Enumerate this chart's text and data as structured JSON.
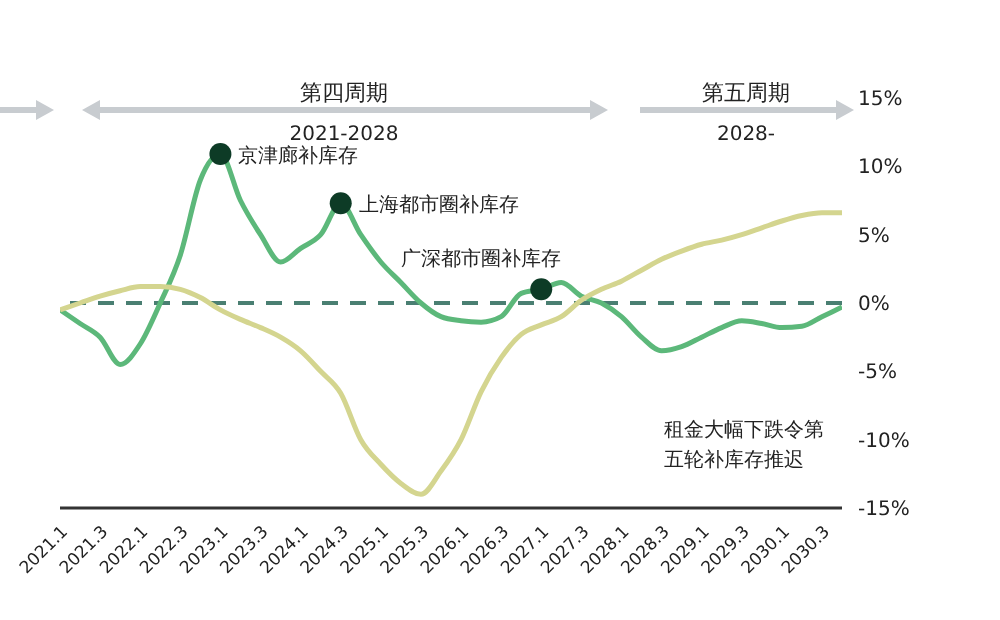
{
  "chart_data": {
    "type": "line",
    "categories": [
      "2021.1",
      null,
      "2021.3",
      null,
      "2022.1",
      null,
      "2022.3",
      null,
      "2023.1",
      null,
      "2023.3",
      null,
      "2024.1",
      null,
      "2024.3",
      null,
      "2025.1",
      null,
      "2025.3",
      null,
      "2026.1",
      null,
      "2026.3",
      null,
      "2027.1",
      null,
      "2027.3",
      null,
      "2028.1",
      null,
      "2028.3",
      null,
      "2029.1",
      null,
      "2029.3",
      null,
      "2030.1",
      null,
      "2030.3",
      null
    ],
    "series": [
      {
        "color": "#5cb87a",
        "values": [
          -0.5,
          -1.5,
          -2.5,
          -4.5,
          -3,
          0,
          3.5,
          9,
          10.9,
          7.5,
          5,
          3,
          4,
          5,
          7.3,
          5,
          3,
          1.5,
          0,
          -1,
          -1.3,
          -1.4,
          -1,
          0.7,
          1,
          1.5,
          0.5,
          0,
          -1,
          -2.5,
          -3.5,
          -3.2,
          -2.5,
          -1.8,
          -1.3,
          -1.5,
          -1.8,
          -1.7,
          -1,
          -0.3
        ]
      },
      {
        "color": "#d4d58f",
        "values": [
          -0.5,
          0,
          0.5,
          0.9,
          1.2,
          1.2,
          1,
          0.4,
          -0.5,
          -1.2,
          -1.8,
          -2.5,
          -3.5,
          -5,
          -6.6,
          -10,
          -11.8,
          -13.2,
          -14,
          -12.3,
          -10,
          -6.5,
          -4,
          -2.3,
          -1.6,
          -1,
          0.2,
          1,
          1.6,
          2.4,
          3.2,
          3.8,
          4.3,
          4.6,
          5,
          5.5,
          6,
          6.4,
          6.6,
          6.6
        ]
      }
    ],
    "ylim": [
      -15,
      15
    ],
    "yticks": [
      {
        "value": -15,
        "label": "-15%"
      },
      {
        "value": -10,
        "label": "-10%"
      },
      {
        "value": -5,
        "label": "-5%"
      },
      {
        "value": 0,
        "label": "0%"
      },
      {
        "value": 5,
        "label": "5%"
      },
      {
        "value": 10,
        "label": "10%"
      },
      {
        "value": 15,
        "label": "15%"
      }
    ],
    "ref_lines": [
      {
        "axis": "y",
        "value": 0,
        "color": "#4a7f72",
        "line_style": "dashed"
      }
    ],
    "annotations": [
      {
        "text": "京津廊补库存",
        "x": "2023.1",
        "y": 10.9
      },
      {
        "text": "上海都市圈补库存",
        "x": "2024.3",
        "y": 7.3
      },
      {
        "text": "广深都市圈补库存",
        "x": "2027.1",
        "y": 1
      },
      "第四周期",
      "2021-2028",
      "第五周期",
      "2028-",
      "租金大幅下跌令第五轮补库存推迟"
    ],
    "marker": "none",
    "line_style": "solid"
  }
}
